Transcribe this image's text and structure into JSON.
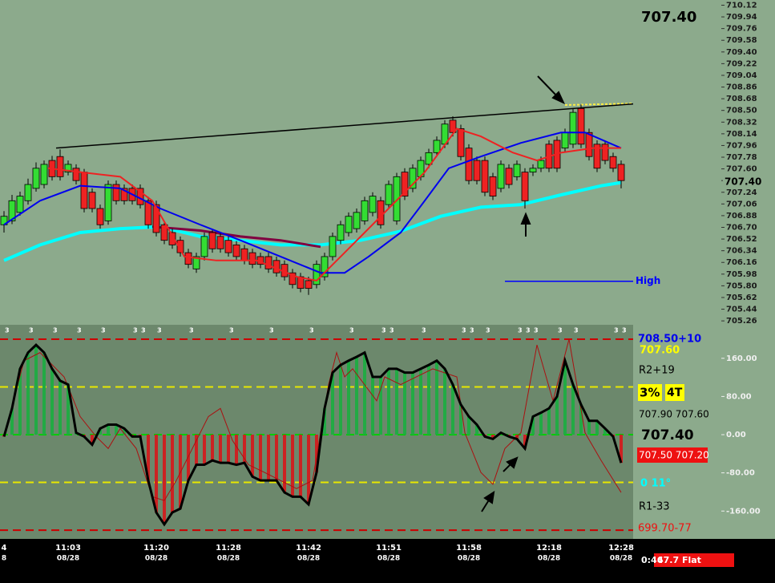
{
  "chart_data": [
    {
      "type": "candlestick",
      "headline": "707.40",
      "last_price": {
        "value": 707.4,
        "label": "707.40"
      },
      "up_color": "#33dd33",
      "down_color": "#ee2222",
      "ylim": [
        705.2,
        710.2
      ],
      "yticks": [
        705.26,
        705.44,
        705.62,
        {
          "value": 705.8,
          "label": "705.80"
        },
        705.98,
        706.16,
        706.34,
        706.52,
        {
          "value": 706.7,
          "label": "706.70"
        },
        706.88,
        707.06,
        707.24,
        707.42,
        {
          "value": 707.6,
          "label": "707.60"
        },
        707.78,
        707.96,
        708.14,
        708.32,
        {
          "value": 708.5,
          "label": "708.50"
        },
        708.68,
        708.86,
        709.04,
        709.22,
        {
          "value": 709.4,
          "label": "709.40"
        },
        709.58,
        709.76,
        709.94,
        710.12
      ],
      "categories": [
        "4",
        null,
        null,
        null,
        null,
        null,
        null,
        null,
        "11:03",
        null,
        null,
        null,
        null,
        null,
        null,
        null,
        null,
        null,
        null,
        "11:20",
        null,
        null,
        null,
        null,
        null,
        null,
        null,
        null,
        "11:28",
        null,
        null,
        null,
        null,
        null,
        null,
        null,
        null,
        null,
        "11:42",
        null,
        null,
        null,
        null,
        null,
        null,
        null,
        null,
        null,
        "11:51",
        null,
        null,
        null,
        null,
        null,
        null,
        null,
        null,
        null,
        "11:58",
        null,
        null,
        null,
        null,
        null,
        null,
        null,
        null,
        null,
        "12:18",
        null,
        null,
        null,
        null,
        null,
        null,
        null,
        null,
        "12:28"
      ],
      "dates": [
        "8",
        null,
        null,
        null,
        null,
        null,
        null,
        null,
        "08/28",
        null,
        null,
        null,
        null,
        null,
        null,
        null,
        null,
        null,
        null,
        "08/28",
        null,
        null,
        null,
        null,
        null,
        null,
        null,
        null,
        "08/28",
        null,
        null,
        null,
        null,
        null,
        null,
        null,
        null,
        null,
        "08/28",
        null,
        null,
        null,
        null,
        null,
        null,
        null,
        null,
        null,
        "08/28",
        null,
        null,
        null,
        null,
        null,
        null,
        null,
        null,
        null,
        "08/28",
        null,
        null,
        null,
        null,
        null,
        null,
        null,
        null,
        null,
        "08/28",
        null,
        null,
        null,
        null,
        null,
        null,
        null,
        null,
        "08/28"
      ],
      "ohlc": [
        [
          706.74,
          706.95,
          706.62,
          706.87
        ],
        [
          706.8,
          707.2,
          706.75,
          707.11
        ],
        [
          706.93,
          707.25,
          706.88,
          707.18
        ],
        [
          707.11,
          707.45,
          707.05,
          707.36
        ],
        [
          707.3,
          707.7,
          707.25,
          707.61
        ],
        [
          707.36,
          707.73,
          707.3,
          707.67
        ],
        [
          707.73,
          707.8,
          707.42,
          707.48
        ],
        [
          707.79,
          707.9,
          707.42,
          707.48
        ],
        [
          707.55,
          707.73,
          707.5,
          707.67
        ],
        [
          707.61,
          707.67,
          707.36,
          707.42
        ],
        [
          707.55,
          707.6,
          706.93,
          706.99
        ],
        [
          707.24,
          707.3,
          706.93,
          706.99
        ],
        [
          706.99,
          707.05,
          706.68,
          706.74
        ],
        [
          706.8,
          707.42,
          706.74,
          707.36
        ],
        [
          707.36,
          707.42,
          707.05,
          707.11
        ],
        [
          707.3,
          707.36,
          707.05,
          707.11
        ],
        [
          707.3,
          707.36,
          707.05,
          707.11
        ],
        [
          707.3,
          707.36,
          706.99,
          707.05
        ],
        [
          707.11,
          707.17,
          706.68,
          706.74
        ],
        [
          707.05,
          707.11,
          706.56,
          706.62
        ],
        [
          706.74,
          706.8,
          706.44,
          706.5
        ],
        [
          706.62,
          706.68,
          706.37,
          706.43
        ],
        [
          706.5,
          706.56,
          706.25,
          706.31
        ],
        [
          706.31,
          706.37,
          706.07,
          706.13
        ],
        [
          706.06,
          706.31,
          706.0,
          706.25
        ],
        [
          706.25,
          706.62,
          706.19,
          706.56
        ],
        [
          706.62,
          706.68,
          706.31,
          706.37
        ],
        [
          706.56,
          706.62,
          706.31,
          706.37
        ],
        [
          706.5,
          706.56,
          706.25,
          706.31
        ],
        [
          706.43,
          706.49,
          706.19,
          706.25
        ],
        [
          706.37,
          706.43,
          706.13,
          706.19
        ],
        [
          706.31,
          706.37,
          706.07,
          706.13
        ],
        [
          706.25,
          706.31,
          706.07,
          706.13
        ],
        [
          706.25,
          706.31,
          706.0,
          706.06
        ],
        [
          706.19,
          706.25,
          705.94,
          706.0
        ],
        [
          706.13,
          706.19,
          705.88,
          705.94
        ],
        [
          706.0,
          706.06,
          705.76,
          705.82
        ],
        [
          705.94,
          706.0,
          705.7,
          705.76
        ],
        [
          705.88,
          705.94,
          705.66,
          705.76
        ],
        [
          705.82,
          706.19,
          705.76,
          706.13
        ],
        [
          705.94,
          706.31,
          705.88,
          706.25
        ],
        [
          706.25,
          706.62,
          706.19,
          706.56
        ],
        [
          706.5,
          706.8,
          706.44,
          706.74
        ],
        [
          706.62,
          706.93,
          706.56,
          706.87
        ],
        [
          706.68,
          706.99,
          706.62,
          706.93
        ],
        [
          706.8,
          707.17,
          706.74,
          707.11
        ],
        [
          706.93,
          707.24,
          706.87,
          707.18
        ],
        [
          707.11,
          707.17,
          706.68,
          706.74
        ],
        [
          707.05,
          707.42,
          706.99,
          707.36
        ],
        [
          706.8,
          707.54,
          706.74,
          707.48
        ],
        [
          707.55,
          707.61,
          707.12,
          707.18
        ],
        [
          707.3,
          707.67,
          707.24,
          707.61
        ],
        [
          707.48,
          707.79,
          707.42,
          707.73
        ],
        [
          707.67,
          707.91,
          707.61,
          707.85
        ],
        [
          707.85,
          708.1,
          707.79,
          708.04
        ],
        [
          707.98,
          708.35,
          707.92,
          708.29
        ],
        [
          708.35,
          708.41,
          708.1,
          708.16
        ],
        [
          708.22,
          708.28,
          707.73,
          707.79
        ],
        [
          707.92,
          707.98,
          707.36,
          707.42
        ],
        [
          707.73,
          707.79,
          707.36,
          707.42
        ],
        [
          707.73,
          707.79,
          707.18,
          707.24
        ],
        [
          707.48,
          707.54,
          707.12,
          707.18
        ],
        [
          707.3,
          707.73,
          707.24,
          707.67
        ],
        [
          707.61,
          707.67,
          707.3,
          707.36
        ],
        [
          707.48,
          707.73,
          707.42,
          707.67
        ],
        [
          707.55,
          707.61,
          706.99,
          707.11
        ],
        [
          707.55,
          707.67,
          707.49,
          707.61
        ],
        [
          707.61,
          707.79,
          707.55,
          707.73
        ],
        [
          707.98,
          708.04,
          707.55,
          707.61
        ],
        [
          708.04,
          708.1,
          707.55,
          707.61
        ],
        [
          707.92,
          708.22,
          707.86,
          708.16
        ],
        [
          707.98,
          708.53,
          707.92,
          708.47
        ],
        [
          708.53,
          708.59,
          707.92,
          707.98
        ],
        [
          708.16,
          708.22,
          707.73,
          707.79
        ],
        [
          707.98,
          708.04,
          707.55,
          707.61
        ],
        [
          707.98,
          708.04,
          707.67,
          707.73
        ],
        [
          707.79,
          707.85,
          707.55,
          707.61
        ],
        [
          707.67,
          707.73,
          707.3,
          707.42
        ]
      ],
      "lines": [
        {
          "color": "#00ffff",
          "width": 4,
          "x": [
            0,
            4.5,
            9.5,
            14.5,
            19.5,
            24.5,
            29.5,
            34.5,
            39.5,
            44.5,
            49.5,
            54.5,
            59.5,
            64.5,
            69.5,
            74.5,
            77
          ],
          "values": [
            706.19,
            706.43,
            706.62,
            706.68,
            706.71,
            706.56,
            706.5,
            706.43,
            706.43,
            706.5,
            706.64,
            706.87,
            707.01,
            707.05,
            707.2,
            707.34,
            707.39
          ]
        },
        {
          "color": "#800040",
          "width": 3,
          "x": [
            18.5,
            24.5,
            29.5,
            34.5,
            39.5
          ],
          "values": [
            706.71,
            706.65,
            706.56,
            706.5,
            706.4
          ]
        },
        {
          "color": "#0000ee",
          "width": 2,
          "x": [
            0,
            4.5,
            9.5,
            14.5,
            19.5,
            24.5,
            29.5,
            34.5,
            39.5,
            42.5,
            45.5,
            49.5,
            52.5,
            55.5,
            59.5,
            64.5,
            69.5,
            72.5,
            77
          ],
          "values": [
            706.74,
            707.11,
            707.34,
            707.3,
            706.99,
            706.74,
            706.5,
            706.25,
            706.0,
            706.0,
            706.25,
            706.62,
            707.11,
            707.61,
            707.79,
            708.0,
            708.16,
            708.16,
            707.92
          ]
        },
        {
          "color": "#ee2222",
          "width": 2,
          "x": [
            5.5,
            9.5,
            14.5,
            18.5,
            22.5,
            26.5,
            31.5,
            36.5,
            39,
            42.5,
            47.5,
            52.5,
            56.5,
            59.5,
            63.5,
            66.5,
            69.5,
            73.5,
            77
          ],
          "values": [
            707.61,
            707.55,
            707.48,
            707.11,
            706.25,
            706.19,
            706.19,
            705.94,
            705.88,
            706.31,
            706.93,
            707.55,
            708.22,
            708.1,
            707.85,
            707.73,
            707.85,
            707.92,
            707.92
          ]
        },
        {
          "color": "#000000",
          "width": 1.5,
          "x": [
            6.5,
            78.5
          ],
          "values": [
            707.92,
            708.6
          ]
        }
      ],
      "level_line": {
        "label": "High",
        "value": 705.87,
        "color": "#0000ff",
        "x": [
          62.5,
          78.5
        ]
      },
      "markers": {
        "label": "3",
        "at": [
          0,
          3,
          6,
          9,
          12,
          16,
          17,
          19,
          23,
          28,
          33,
          38,
          43,
          47,
          48,
          52,
          57,
          58,
          60,
          64,
          65,
          66,
          69,
          71,
          76,
          77
        ]
      }
    },
    {
      "type": "oscillator",
      "ylim": [
        -215,
        205
      ],
      "yticks": [
        {
          "value": 160,
          "label": "160.00"
        },
        {
          "value": 80,
          "label": "80.00"
        },
        {
          "value": 0,
          "label": "0.00"
        },
        {
          "value": -80,
          "label": "-80.00"
        },
        {
          "value": -160,
          "label": "-160.00"
        }
      ],
      "levels": [
        {
          "value": 200,
          "color": "#cc0000"
        },
        {
          "value": 100,
          "color": "#e8e800"
        },
        {
          "value": 0,
          "color": "#00cc00"
        },
        {
          "value": -100,
          "color": "#e8e800"
        },
        {
          "value": -200,
          "color": "#cc0000"
        }
      ],
      "color": "#000000",
      "pos_color": "#22aa44",
      "neg_color": "#cc2222",
      "values": [
        -4,
        55,
        138,
        172,
        188,
        172,
        138,
        113,
        105,
        4,
        -4,
        -21,
        13,
        21,
        21,
        13,
        -4,
        -4,
        -96,
        -163,
        -188,
        -163,
        -155,
        -96,
        -63,
        -63,
        -54,
        -59,
        -59,
        -63,
        -59,
        -88,
        -96,
        -96,
        -96,
        -121,
        -130,
        -130,
        -146,
        -79,
        55,
        130,
        146,
        155,
        163,
        172,
        121,
        121,
        138,
        138,
        130,
        130,
        138,
        146,
        155,
        138,
        105,
        63,
        38,
        21,
        -4,
        -9,
        4,
        -4,
        -9,
        -29,
        38,
        46,
        55,
        80,
        155,
        105,
        63,
        29,
        29,
        13,
        -4,
        -59
      ],
      "signal": {
        "color": "#aa1111",
        "x": [
          0,
          2.5,
          4.5,
          7.5,
          9.5,
          11.5,
          13,
          14.5,
          16.5,
          18.5,
          20,
          21.5,
          23.5,
          25.5,
          27,
          28.5,
          30.5,
          32.5,
          34.5,
          36.5,
          38.5,
          40.5,
          41.5,
          42.5,
          43.5,
          46.5,
          47.5,
          49.5,
          53.5,
          56.5,
          57.5,
          59.5,
          61,
          62.5,
          64.5,
          66.5,
          68.5,
          70.5,
          72.5,
          74.5,
          77
        ],
        "values": [
          -4,
          155,
          172,
          121,
          38,
          -4,
          -29,
          13,
          -29,
          -130,
          -138,
          -96,
          -29,
          38,
          55,
          -12,
          -63,
          -79,
          -96,
          -113,
          -96,
          105,
          172,
          121,
          138,
          71,
          121,
          105,
          138,
          121,
          4,
          -79,
          -104,
          -29,
          4,
          188,
          71,
          200,
          4,
          -54,
          -121
        ]
      }
    }
  ],
  "side_panel": [
    "708.50+10",
    "707.60",
    "R2+19",
    "3%",
    "4T",
    "707.90 707.60",
    "707.40",
    "707.50 707.20",
    "0  11°",
    "R1-33",
    "699.70-77"
  ],
  "status_bar": {
    "timer": "0:46",
    "status": "47.7 Flat"
  }
}
